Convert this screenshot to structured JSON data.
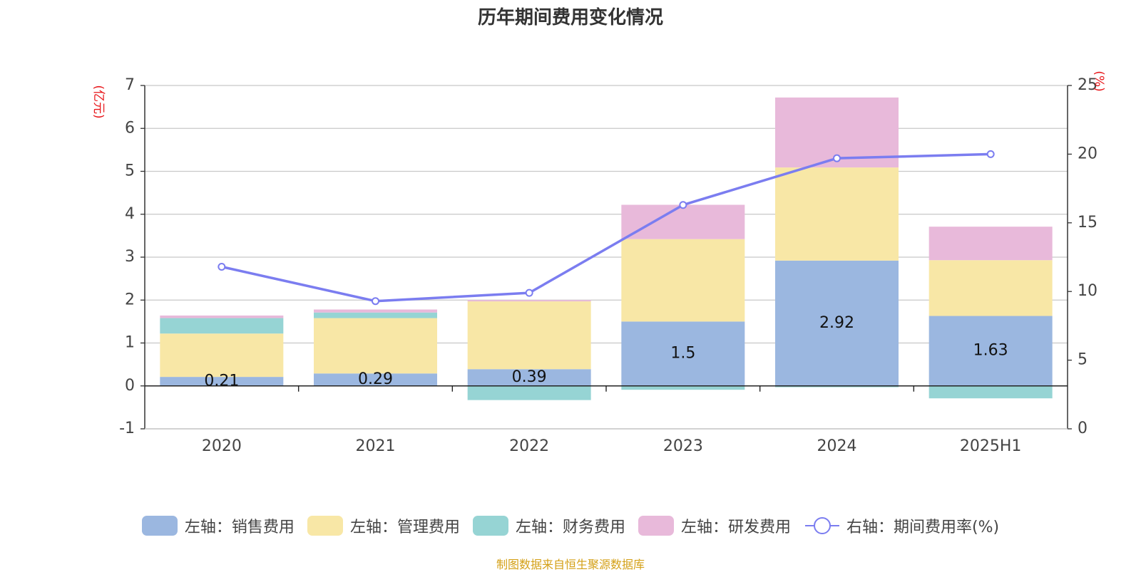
{
  "chart_data": {
    "title": "历年期间费用变化情况",
    "type": "bar+line",
    "categories": [
      "2020",
      "2021",
      "2022",
      "2023",
      "2024",
      "2025H1"
    ],
    "left_axis": {
      "unit_label": "(亿元)",
      "ylim": [
        -1,
        7
      ],
      "ticks": [
        -1,
        0,
        1,
        2,
        3,
        4,
        5,
        6,
        7
      ]
    },
    "right_axis": {
      "unit_label": "(%)",
      "ylim": [
        0,
        25
      ],
      "ticks": [
        0,
        5,
        10,
        15,
        20,
        25
      ]
    },
    "grid": true,
    "legend_position": "bottom",
    "series": [
      {
        "name": "左轴：销售费用",
        "type": "bar",
        "axis": "left",
        "color": "#9bb7e0",
        "values": [
          0.21,
          0.29,
          0.39,
          1.5,
          2.92,
          1.63
        ],
        "data_labels": [
          "0.21",
          "0.29",
          "0.39",
          "1.5",
          "2.92",
          "1.63"
        ]
      },
      {
        "name": "左轴：管理费用",
        "type": "bar",
        "axis": "left",
        "color": "#f8e7a6",
        "values": [
          1.01,
          1.29,
          1.58,
          1.92,
          2.17,
          1.3
        ]
      },
      {
        "name": "左轴：财务费用",
        "type": "bar",
        "axis": "left",
        "color": "#96d4d4",
        "values": [
          0.36,
          0.13,
          -0.33,
          -0.09,
          -0.03,
          -0.29
        ]
      },
      {
        "name": "左轴：研发费用",
        "type": "bar",
        "axis": "left",
        "color": "#e8b9da",
        "values": [
          0.06,
          0.07,
          0.03,
          0.8,
          1.63,
          0.78
        ]
      },
      {
        "name": "右轴：期间费用率(%)",
        "type": "line",
        "axis": "right",
        "color": "#7b7df0",
        "values": [
          11.8,
          9.3,
          9.9,
          16.3,
          19.7,
          20.0
        ]
      }
    ]
  },
  "footer": {
    "text": "制图数据来自恒生聚源数据库",
    "color": "#d4a017"
  }
}
